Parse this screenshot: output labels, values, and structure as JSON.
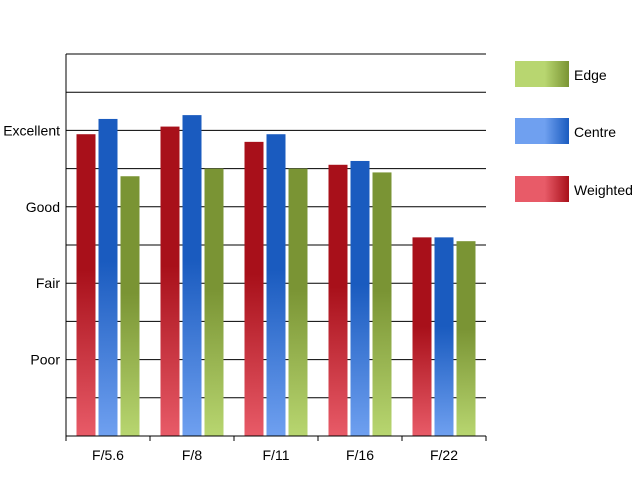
{
  "chart_data": {
    "type": "bar",
    "title": "",
    "xlabel": "",
    "ylabel": "",
    "categories": [
      "F/5.6",
      "F/8",
      "F/11",
      "F/16",
      "F/22"
    ],
    "y_tick_labels": [
      "Poor",
      "Fair",
      "Good",
      "Excellent"
    ],
    "y_tick_values": [
      2,
      4,
      6,
      8
    ],
    "ylim": [
      0,
      10
    ],
    "grid": true,
    "legend_position": "right",
    "series": [
      {
        "name": "Weighted",
        "values": [
          7.9,
          8.1,
          7.7,
          7.1,
          5.2
        ],
        "colors": {
          "light": "#e85b68",
          "dark": "#a8101a"
        }
      },
      {
        "name": "Centre",
        "values": [
          8.3,
          8.4,
          7.9,
          7.2,
          5.2
        ],
        "colors": {
          "light": "#6fa0f0",
          "dark": "#1a5bbf"
        }
      },
      {
        "name": "Edge",
        "values": [
          6.8,
          7.0,
          7.0,
          6.9,
          5.1
        ],
        "colors": {
          "light": "#b8d670",
          "dark": "#7a9434"
        }
      }
    ],
    "legend_order": [
      "Edge",
      "Centre",
      "Weighted"
    ]
  }
}
